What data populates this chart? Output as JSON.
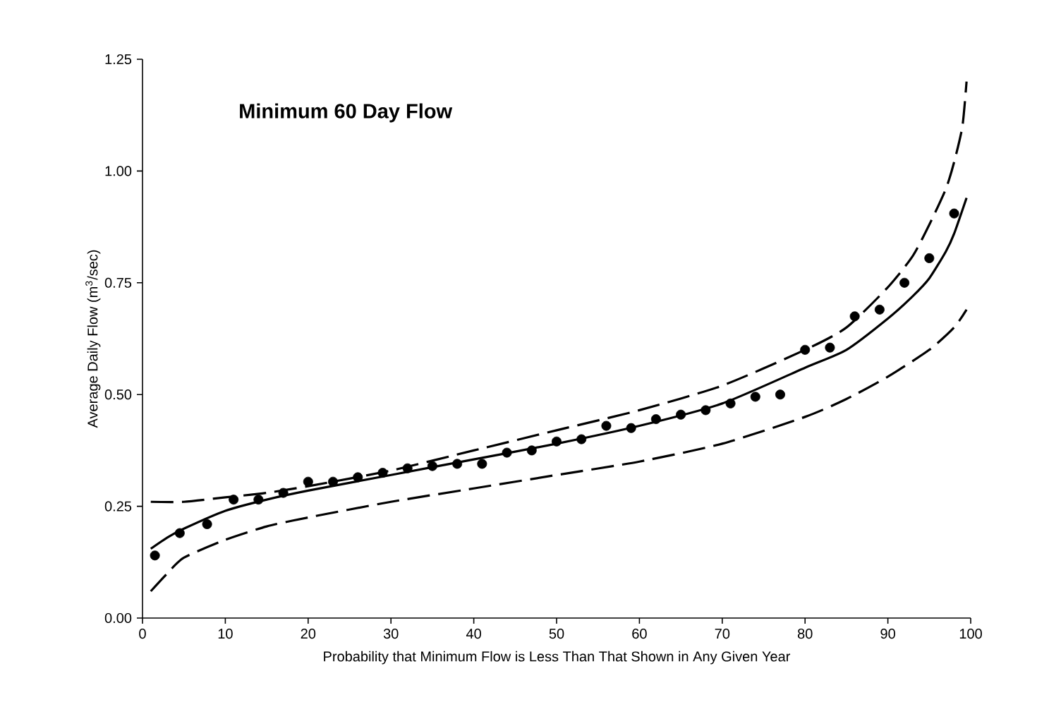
{
  "chart_data": {
    "type": "scatter",
    "title": "Minimum 60 Day Flow",
    "xlabel": "Probability that Minimum Flow is Less Than That Shown in Any Given Year",
    "ylabel": "Average Daily Flow (m$^{3}$/sec)",
    "xlim": [
      0,
      100
    ],
    "ylim": [
      0,
      1.25
    ],
    "xticks": [
      0,
      10,
      20,
      30,
      40,
      50,
      60,
      70,
      80,
      90,
      100
    ],
    "yticks": [
      {
        "value": 0,
        "label": "0.00"
      },
      {
        "value": 0.25,
        "label": "0.25"
      },
      {
        "value": 0.5,
        "label": "0.50"
      },
      {
        "value": 0.75,
        "label": "0.75"
      },
      {
        "value": 1,
        "label": "1.00"
      },
      {
        "value": 1.25,
        "label": "1.25"
      }
    ],
    "grid": false,
    "series": [
      {
        "color": "#000000",
        "x": [
          1.5,
          4.5,
          7.8,
          11,
          14,
          17,
          20,
          23,
          26,
          29,
          32,
          35,
          38,
          41,
          44,
          47,
          50,
          53,
          56,
          59,
          62,
          65,
          68,
          71,
          74,
          77,
          80,
          83,
          86,
          89,
          92,
          95,
          98
        ],
        "values": [
          0.14,
          0.19,
          0.21,
          0.265,
          0.265,
          0.28,
          0.305,
          0.305,
          0.315,
          0.325,
          0.335,
          0.34,
          0.345,
          0.345,
          0.37,
          0.375,
          0.395,
          0.4,
          0.43,
          0.425,
          0.445,
          0.455,
          0.465,
          0.48,
          0.495,
          0.5,
          0.6,
          0.605,
          0.675,
          0.69,
          0.75,
          0.805,
          0.905
        ]
      },
      {
        "type": "line",
        "marker": "none",
        "line_style": "solid",
        "color": "#000000",
        "x": [
          1,
          3,
          5,
          10,
          15,
          20,
          30,
          40,
          50,
          60,
          70,
          80,
          85,
          90,
          93,
          95,
          97,
          98,
          99.5
        ],
        "values": [
          0.155,
          0.18,
          0.2,
          0.24,
          0.265,
          0.285,
          0.32,
          0.355,
          0.39,
          0.43,
          0.48,
          0.56,
          0.6,
          0.67,
          0.72,
          0.76,
          0.82,
          0.86,
          0.94
        ]
      },
      {
        "type": "line",
        "marker": "none",
        "line_style": "dashed",
        "color": "#000000",
        "x": [
          1,
          5,
          10,
          15,
          20,
          30,
          40,
          50,
          60,
          70,
          80,
          85,
          90,
          93,
          95,
          97,
          98,
          99,
          99.5
        ],
        "values": [
          0.26,
          0.26,
          0.27,
          0.28,
          0.295,
          0.33,
          0.375,
          0.42,
          0.465,
          0.52,
          0.6,
          0.65,
          0.74,
          0.81,
          0.88,
          0.96,
          1.02,
          1.1,
          1.2
        ]
      },
      {
        "type": "line",
        "marker": "none",
        "line_style": "dashed",
        "color": "#000000",
        "x": [
          1,
          3,
          5,
          10,
          15,
          20,
          30,
          40,
          50,
          60,
          70,
          80,
          85,
          90,
          95,
          98,
          99.5
        ],
        "values": [
          0.06,
          0.1,
          0.135,
          0.175,
          0.205,
          0.225,
          0.26,
          0.29,
          0.32,
          0.35,
          0.39,
          0.45,
          0.49,
          0.54,
          0.6,
          0.65,
          0.69
        ]
      }
    ]
  }
}
